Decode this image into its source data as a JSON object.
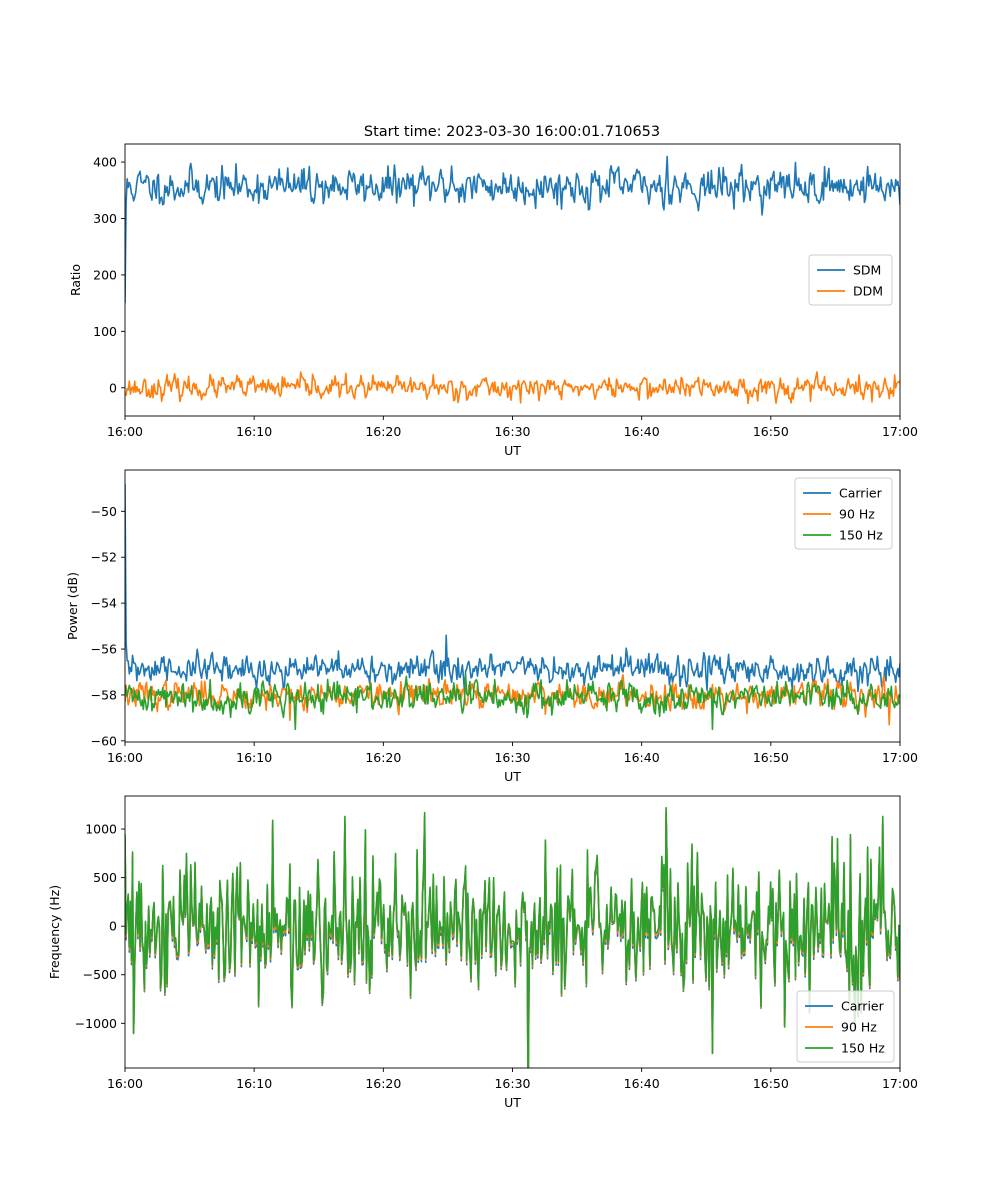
{
  "figure": {
    "title": "Start time: 2023-03-30 16:00:01.710653"
  },
  "chart_data": [
    {
      "type": "line",
      "title": "Start time: 2023-03-30 16:00:01.710653",
      "xlabel": "UT",
      "ylabel": "Ratio",
      "x_range_minutes": [
        0,
        60
      ],
      "x_ticks": [
        "16:00",
        "16:10",
        "16:20",
        "16:30",
        "16:40",
        "16:50",
        "17:00"
      ],
      "ylim": [
        -50,
        432
      ],
      "y_ticks": [
        0,
        100,
        200,
        300,
        400
      ],
      "legend": "center-right",
      "series": [
        {
          "name": "SDM",
          "color": "#1f77b4",
          "start": 150,
          "mean": 357,
          "noise": 15,
          "spikes": [
            [
              42.0,
              410
            ],
            [
              25.3,
              393
            ],
            [
              57.5,
              392
            ],
            [
              14.3,
              392
            ]
          ],
          "seed": 11
        },
        {
          "name": "DDM",
          "color": "#ff7f0e",
          "mean": 0,
          "noise": 9,
          "spikes": [
            [
              14.5,
              24
            ],
            [
              23.9,
              23
            ],
            [
              59.6,
              23
            ],
            [
              53.1,
              -24
            ],
            [
              57.8,
              -25
            ]
          ],
          "seed": 23
        }
      ]
    },
    {
      "type": "line",
      "xlabel": "UT",
      "ylabel": "Power (dB)",
      "x_range_minutes": [
        0,
        60
      ],
      "x_ticks": [
        "16:00",
        "16:10",
        "16:20",
        "16:30",
        "16:40",
        "16:50",
        "17:00"
      ],
      "ylim": [
        -60.05,
        -48.2
      ],
      "y_ticks": [
        -60,
        -58,
        -56,
        -54,
        -52,
        -50
      ],
      "legend": "upper right",
      "series": [
        {
          "name": "Carrier",
          "color": "#1f77b4",
          "start": -48.8,
          "mean": -56.9,
          "noise": 0.3,
          "spikes": [
            [
              24.9,
              -55.4
            ],
            [
              45.1,
              -57.8
            ]
          ],
          "seed": 31
        },
        {
          "name": "90 Hz",
          "color": "#ff7f0e",
          "mean": -58.0,
          "noise": 0.28,
          "spikes": [
            [
              12.8,
              -59.1
            ],
            [
              59.2,
              -59.3
            ]
          ],
          "seed": 37
        },
        {
          "name": "150 Hz",
          "color": "#2ca02c",
          "mean": -58.1,
          "noise": 0.32,
          "spikes": [
            [
              13.2,
              -59.5
            ],
            [
              45.5,
              -59.5
            ],
            [
              26.4,
              -57.1
            ]
          ],
          "seed": 41
        }
      ]
    },
    {
      "type": "line",
      "xlabel": "UT",
      "ylabel": "Frequency (Hz)",
      "x_range_minutes": [
        0,
        60
      ],
      "x_ticks": [
        "16:00",
        "16:10",
        "16:20",
        "16:30",
        "16:40",
        "16:50",
        "17:00"
      ],
      "ylim": [
        -1460,
        1340
      ],
      "y_ticks": [
        -1000,
        -500,
        0,
        500,
        1000
      ],
      "legend": "lower right",
      "series": [
        {
          "name": "Carrier",
          "color": "#1f77b4",
          "offset": -60,
          "seed": 53
        },
        {
          "name": "90 Hz",
          "color": "#ff7f0e",
          "offset": -30,
          "seed": 53
        },
        {
          "name": "150 Hz",
          "color": "#2ca02c",
          "offset": 0,
          "seed": 53
        }
      ],
      "base_noise": 380,
      "spikes": [
        [
          41.9,
          1220
        ],
        [
          23.2,
          1170
        ],
        [
          17.0,
          1130
        ],
        [
          58.7,
          1130
        ],
        [
          45.5,
          -1310
        ],
        [
          0.7,
          -1100
        ],
        [
          51.1,
          -1030
        ]
      ]
    }
  ]
}
